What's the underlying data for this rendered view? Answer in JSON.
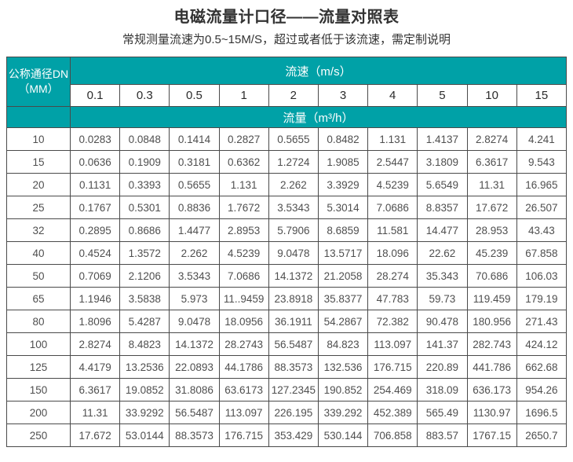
{
  "page": {
    "title": "电磁流量计口径——流量对照表",
    "subtitle": "常规测量流速为0.5~15M/S，超过或者低于该流速，需定制说明"
  },
  "colors": {
    "header_teal": "#00A1A7",
    "border": "#4A4A4A",
    "cell_text": "#4F4F4F",
    "header_num": "#2B2B2B",
    "title_text": "#333333"
  },
  "table": {
    "corner": {
      "line1": "公称通径DN",
      "line2": "（MM）"
    },
    "velocity_header": "流速（m/s）",
    "flow_header": "流量（m³/h）",
    "velocities": [
      "0.1",
      "0.3",
      "0.5",
      "1",
      "2",
      "3",
      "4",
      "5",
      "10",
      "15"
    ],
    "rows": [
      {
        "dn": "10",
        "values": [
          "0.0283",
          "0.0848",
          "0.1414",
          "0.2827",
          "0.5655",
          "0.8482",
          "1.131",
          "1.4137",
          "2.8274",
          "4.241"
        ]
      },
      {
        "dn": "15",
        "values": [
          "0.0636",
          "0.1909",
          "0.3181",
          "0.6362",
          "1.2724",
          "1.9085",
          "2.5447",
          "3.1809",
          "6.3617",
          "9.543"
        ]
      },
      {
        "dn": "20",
        "values": [
          "0.1131",
          "0.3393",
          "0.5655",
          "1.131",
          "2.262",
          "3.3929",
          "4.5239",
          "5.6549",
          "11.31",
          "16.965"
        ]
      },
      {
        "dn": "25",
        "values": [
          "0.1767",
          "0.5301",
          "0.8836",
          "1.7672",
          "3.5343",
          "5.3014",
          "7.0686",
          "8.8357",
          "17.672",
          "26.507"
        ]
      },
      {
        "dn": "32",
        "values": [
          "0.2895",
          "0.8686",
          "1.4477",
          "2.8953",
          "5.7906",
          "8.6859",
          "11.581",
          "14.477",
          "28.953",
          "43.43"
        ]
      },
      {
        "dn": "40",
        "values": [
          "0.4524",
          "1.3572",
          "2.262",
          "4.5239",
          "9.0478",
          "13.5717",
          "18.096",
          "22.62",
          "45.239",
          "67.858"
        ]
      },
      {
        "dn": "50",
        "values": [
          "0.7069",
          "2.1206",
          "3.5343",
          "7.0686",
          "14.1372",
          "21.2058",
          "28.274",
          "35.343",
          "70.686",
          "106.03"
        ]
      },
      {
        "dn": "65",
        "values": [
          "1.1946",
          "3.5838",
          "5.973",
          "11..9459",
          "23.8918",
          "35.8377",
          "47.783",
          "59.73",
          "119.459",
          "179.19"
        ]
      },
      {
        "dn": "80",
        "values": [
          "1.8096",
          "5.4287",
          "9.0478",
          "18.0956",
          "36.1911",
          "54.2867",
          "72.382",
          "90.478",
          "180.956",
          "271.43"
        ]
      },
      {
        "dn": "100",
        "values": [
          "2.8274",
          "8.4823",
          "14.1372",
          "28.2743",
          "56.5487",
          "84.823",
          "113.097",
          "141.37",
          "282.743",
          "424.12"
        ]
      },
      {
        "dn": "125",
        "values": [
          "4.4179",
          "13.2536",
          "22.0893",
          "44.1786",
          "88.3573",
          "132.536",
          "176.715",
          "220.89",
          "441.786",
          "662.68"
        ]
      },
      {
        "dn": "150",
        "values": [
          "6.3617",
          "19.0852",
          "31.8086",
          "63.6173",
          "127.2345",
          "190.852",
          "254.469",
          "318.09",
          "636.173",
          "954.26"
        ]
      },
      {
        "dn": "200",
        "values": [
          "11.31",
          "33.9292",
          "56.5487",
          "113.097",
          "226.195",
          "339.292",
          "452.389",
          "565.49",
          "1130.97",
          "1696.5"
        ]
      },
      {
        "dn": "250",
        "values": [
          "17.672",
          "53.0144",
          "88.3573",
          "176.715",
          "353.429",
          "530.144",
          "706.858",
          "883.57",
          "1767.15",
          "2650.7"
        ]
      }
    ]
  }
}
